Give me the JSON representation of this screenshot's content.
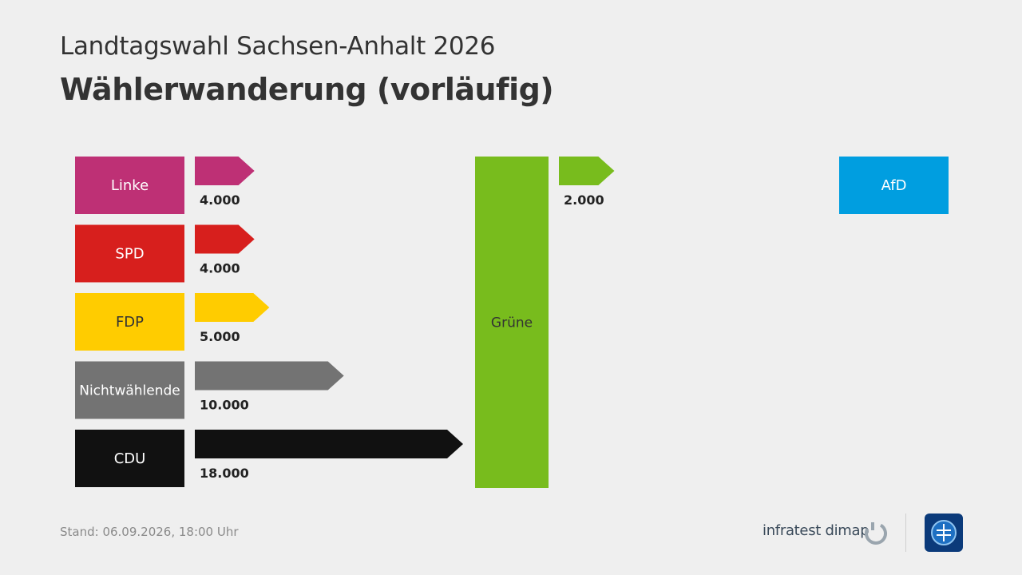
{
  "header": {
    "subtitle": "Landtagswahl Sachsen-Anhalt 2026",
    "title": "Wählerwanderung (vorläufig)"
  },
  "footer": {
    "stand": "Stand:  06.09.2026, 18:00 Uhr",
    "provider": "infratest dimap",
    "logo_icon": "infratest-dimap-logo",
    "ard_icon": "tagesschau-logo"
  },
  "chart_data": {
    "type": "bar",
    "target": {
      "name": "Grüne",
      "color": "#78bc1d"
    },
    "inflows": [
      {
        "party": "Linke",
        "value": 4000,
        "label": "4.000",
        "color": "#be3075",
        "text_color": "#ffffff"
      },
      {
        "party": "SPD",
        "value": 4000,
        "label": "4.000",
        "color": "#d71f1d",
        "text_color": "#ffffff"
      },
      {
        "party": "FDP",
        "value": 5000,
        "label": "5.000",
        "color": "#ffcc00",
        "text_color": "#333333"
      },
      {
        "party": "Nichtwählende",
        "value": 10000,
        "label": "10.000",
        "color": "#737373",
        "text_color": "#ffffff"
      },
      {
        "party": "CDU",
        "value": 18000,
        "label": "18.000",
        "color": "#111111",
        "text_color": "#ffffff"
      }
    ],
    "outflows": [
      {
        "party": "AfD",
        "value": 2000,
        "label": "2.000",
        "color": "#009ee0",
        "text_color": "#ffffff"
      }
    ]
  }
}
